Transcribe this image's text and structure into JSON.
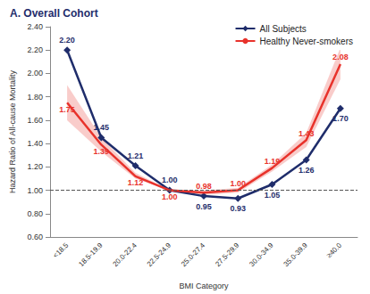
{
  "chart_data": {
    "type": "line",
    "title": "A. Overall Cohort",
    "x_label": "BMI Category",
    "y_label": "Hazard Ratio of All-cause Mortality",
    "categories": [
      "<18.5",
      "18.5-19.9",
      "20.0-22.4",
      "22.5-24.9",
      "25.0-27.4",
      "27.5-29.9",
      "30.0-34.9",
      "35.0-39.9",
      "≥40.0"
    ],
    "series": [
      {
        "name": "All Subjects",
        "color": "#1f2d6b",
        "marker": "diamond",
        "line_style": "solid",
        "values": [
          2.2,
          1.45,
          1.21,
          1.0,
          0.95,
          0.93,
          1.05,
          1.26,
          1.7
        ],
        "value_labels": [
          "2.20",
          "1.45",
          "1.21",
          "1.00",
          "0.95",
          "0.93",
          "1.05",
          "1.26",
          "1.70"
        ]
      },
      {
        "name": "Healthy Never-smokers",
        "color": "#e8322b",
        "marker": "none",
        "line_style": "solid",
        "values": [
          1.75,
          1.39,
          1.12,
          1.0,
          0.98,
          1.0,
          1.19,
          1.43,
          2.08
        ],
        "value_labels": [
          "1.75",
          "1.39",
          "1.12",
          "1.00",
          "0.98",
          "1.00",
          "1.19",
          "1.43",
          "2.08"
        ],
        "lower": [
          1.6,
          1.33,
          1.1,
          1.0,
          0.96,
          0.98,
          1.16,
          1.37,
          1.95
        ],
        "upper": [
          1.9,
          1.45,
          1.15,
          1.0,
          1.0,
          1.02,
          1.22,
          1.49,
          2.22
        ]
      }
    ],
    "ylim": [
      0.6,
      2.4
    ],
    "yticks": [
      {
        "value": 0.6,
        "label": "0.60"
      },
      {
        "value": 0.8,
        "label": "0.80"
      },
      {
        "value": 1.0,
        "label": "1.00"
      },
      {
        "value": 1.2,
        "label": "1.20"
      },
      {
        "value": 1.4,
        "label": "1.40"
      },
      {
        "value": 1.6,
        "label": "1.60"
      },
      {
        "value": 1.8,
        "label": "1.80"
      },
      {
        "value": 2.0,
        "label": "2.00"
      },
      {
        "value": 2.2,
        "label": "2.20"
      },
      {
        "value": 2.4,
        "label": "2.40"
      }
    ],
    "reference_line": 1.0,
    "grid": false,
    "legend": "top-right",
    "data_labels": true
  }
}
